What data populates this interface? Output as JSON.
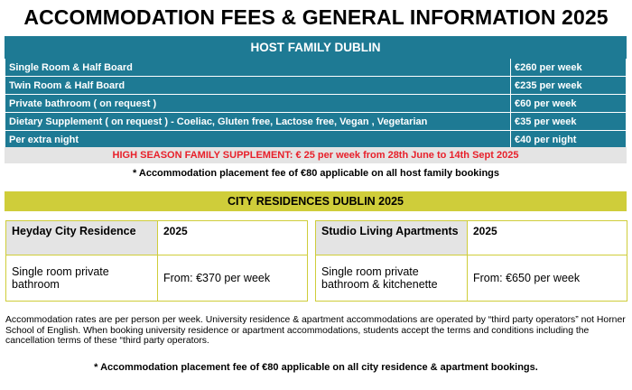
{
  "title": "ACCOMMODATION FEES & GENERAL INFORMATION 2025",
  "host_family": {
    "heading": "HOST FAMILY DUBLIN",
    "rows": [
      {
        "label": "Single Room & Half Board",
        "price": "€260 per week"
      },
      {
        "label": "Twin Room & Half Board",
        "price": "€235 per week"
      },
      {
        "label": "Private bathroom ( on request )",
        "price": "€60 per week"
      },
      {
        "label": "Dietary Supplement ( on request )  -  Coeliac,  Gluten free,  Lactose free, Vegan , Vegetarian",
        "price": "€35 per week"
      },
      {
        "label": "Per extra night",
        "price": "€40 per night"
      }
    ],
    "season_supplement": "HIGH SEASON FAMILY SUPPLEMENT: € 25 per week from 28th June to 14th Sept 2025",
    "placement_note": "*  Accommodation placement fee of  €80 applicable on all host family bookings"
  },
  "city_residences": {
    "heading": "CITY RESIDENCES DUBLIN 2025",
    "residences": [
      {
        "name": "Heyday City Residence",
        "year": "2025",
        "room": "Single room private bathroom",
        "price": "From: €370 per week"
      },
      {
        "name": "Studio Living Apartments",
        "year": "2025",
        "room": "Single room private bathroom & kitchenette",
        "price": "From: €650 per week"
      }
    ],
    "footnote": "Accommodation rates are per person per week.     University residence & apartment accommodations  are operated by “third party operators” not Horner School of English.  When booking university residence or apartment accommodations, students accept the terms and conditions including the cancellation terms of these “third party operators.",
    "placement_note": "*  Accommodation placement fee of  €80 applicable on all city residence & apartment bookings."
  },
  "colors": {
    "teal": "#1e7a94",
    "olive_yellow": "#cfcd3a",
    "red": "#e8202a",
    "grey": "#e4e4e4"
  }
}
